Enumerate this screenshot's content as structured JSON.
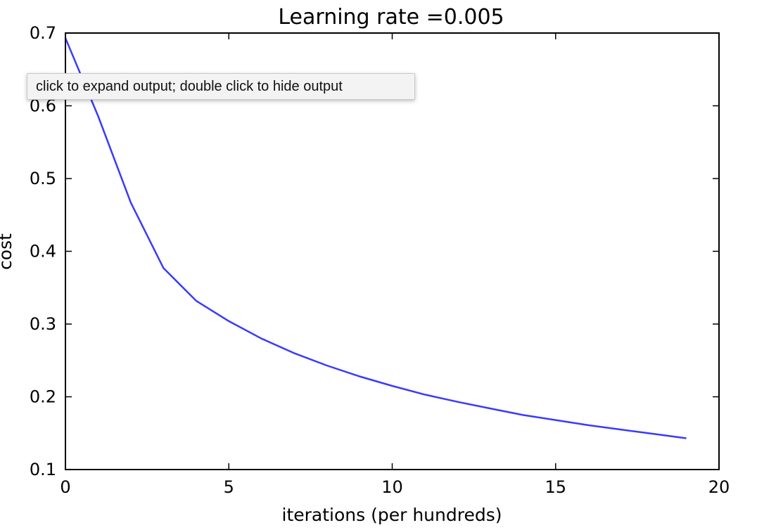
{
  "tooltip": {
    "text": "click to expand output; double click to hide output"
  },
  "colors": {
    "line": "#3a3aff",
    "axes": "#000000",
    "background": "#ffffff"
  },
  "chart_data": {
    "type": "line",
    "title": "Learning rate =0.005",
    "xlabel": "iterations (per hundreds)",
    "ylabel": "cost",
    "xlim": [
      0,
      20
    ],
    "ylim": [
      0.1,
      0.7
    ],
    "xticks": [
      0,
      5,
      10,
      15,
      20
    ],
    "yticks": [
      0.1,
      0.2,
      0.3,
      0.4,
      0.5,
      0.6,
      0.7
    ],
    "xtick_labels": [
      "0",
      "5",
      "10",
      "15",
      "20"
    ],
    "ytick_labels": [
      "0.1",
      "0.2",
      "0.3",
      "0.4",
      "0.5",
      "0.6",
      "0.7"
    ],
    "grid": false,
    "series": [
      {
        "x": [
          0,
          1,
          2,
          3,
          4,
          5,
          6,
          7,
          8,
          9,
          10,
          11,
          12,
          13,
          14,
          15,
          16,
          17,
          18,
          19
        ],
        "y": [
          0.693,
          0.586,
          0.467,
          0.377,
          0.332,
          0.304,
          0.28,
          0.26,
          0.243,
          0.228,
          0.215,
          0.203,
          0.193,
          0.184,
          0.175,
          0.168,
          0.161,
          0.155,
          0.149,
          0.143
        ]
      }
    ]
  }
}
